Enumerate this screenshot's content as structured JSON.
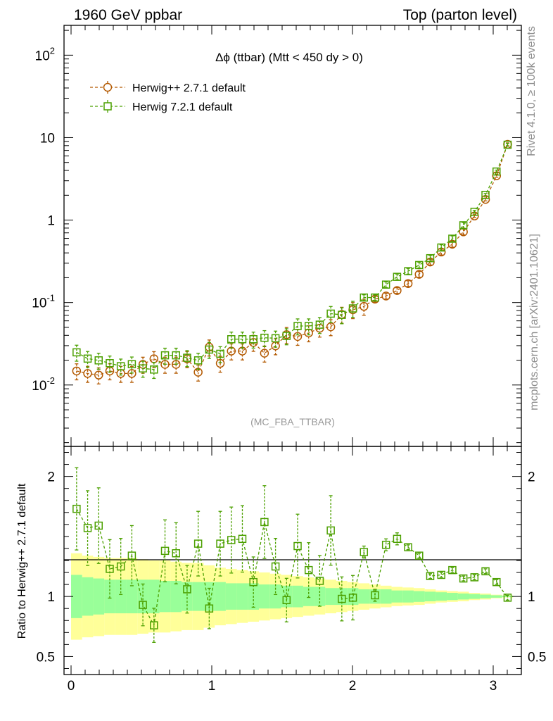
{
  "header": {
    "left": "1960 GeV ppbar",
    "right": "Top (parton level)"
  },
  "side": {
    "rivet": "Rivet 4.1.0, ≥ 100k events",
    "mcplots": "mcplots.cern.ch [arXiv:2401.10621]"
  },
  "colors": {
    "series1": "#b35900",
    "series2": "#4ca000",
    "band_inner": "#99ff99",
    "band_outer": "#ffff99"
  },
  "chart_data": [
    {
      "type": "line",
      "id": "main",
      "title": "Δϕ (ttbar) (Mtt < 450 dy > 0)",
      "annotation": "(MC_FBA_TTBAR)",
      "yscale": "log",
      "xlim": [
        -0.05,
        3.2
      ],
      "ylim": [
        0.0018,
        230
      ],
      "x_ticks": [
        0,
        1,
        2,
        3
      ],
      "y_tick_labels": [
        "10^-2",
        "10^-1",
        "1",
        "10",
        "10^2"
      ],
      "legend_position": "top-left",
      "x": [
        0.0393,
        0.1178,
        0.1963,
        0.2749,
        0.3534,
        0.432,
        0.5105,
        0.589,
        0.6676,
        0.7461,
        0.8247,
        0.9032,
        0.9817,
        1.0603,
        1.1388,
        1.2174,
        1.2959,
        1.3744,
        1.453,
        1.5315,
        1.6101,
        1.6886,
        1.7671,
        1.8457,
        1.9242,
        2.0028,
        2.0813,
        2.1598,
        2.2384,
        2.3169,
        2.3955,
        2.474,
        2.5525,
        2.6311,
        2.7096,
        2.7882,
        2.8667,
        2.9452,
        3.0238,
        3.1023
      ],
      "series": [
        {
          "name": "Herwig++ 2.7.1 default",
          "marker": "circle",
          "values": [
            0.0148,
            0.0138,
            0.0132,
            0.0148,
            0.0138,
            0.0138,
            0.0178,
            0.0208,
            0.0178,
            0.0178,
            0.0208,
            0.0143,
            0.0288,
            0.0183,
            0.0258,
            0.0258,
            0.0328,
            0.0243,
            0.0298,
            0.0408,
            0.0388,
            0.0428,
            0.0488,
            0.0508,
            0.0718,
            0.0818,
            0.0898,
            0.11,
            0.12,
            0.14,
            0.17,
            0.22,
            0.31,
            0.41,
            0.51,
            0.72,
            1.12,
            1.78,
            3.45,
            8.3
          ]
        },
        {
          "name": "Herwig 7.2.1 default",
          "marker": "square",
          "values": [
            0.0249,
            0.0209,
            0.0199,
            0.0184,
            0.0169,
            0.0179,
            0.0159,
            0.0154,
            0.0229,
            0.0229,
            0.0214,
            0.0199,
            0.0269,
            0.0239,
            0.0359,
            0.0359,
            0.0359,
            0.0374,
            0.0369,
            0.0394,
            0.0519,
            0.0519,
            0.0539,
            0.0734,
            0.0709,
            0.0849,
            0.115,
            0.115,
            0.165,
            0.205,
            0.24,
            0.285,
            0.345,
            0.465,
            0.595,
            0.865,
            1.26,
            2.02,
            3.88,
            8.2
          ]
        }
      ]
    },
    {
      "type": "line",
      "id": "ratio",
      "ylabel": "Ratio to Herwig++ 2.7.1 default",
      "xlim": [
        -0.05,
        3.2
      ],
      "ylim": [
        0.35,
        2.25
      ],
      "y_ticks": [
        0.5,
        1,
        2
      ],
      "x_ticks": [
        0,
        1,
        2,
        3
      ],
      "x": [
        0.0393,
        0.1178,
        0.1963,
        0.2749,
        0.3534,
        0.432,
        0.5105,
        0.589,
        0.6676,
        0.7461,
        0.8247,
        0.9032,
        0.9817,
        1.0603,
        1.1388,
        1.2174,
        1.2959,
        1.3744,
        1.453,
        1.5315,
        1.6101,
        1.6886,
        1.7671,
        1.8457,
        1.9242,
        2.0028,
        2.0813,
        2.1598,
        2.2384,
        2.3169,
        2.3955,
        2.474,
        2.5525,
        2.6311,
        2.7096,
        2.7882,
        2.8667,
        2.9452,
        3.0238,
        3.1023
      ],
      "values": [
        1.73,
        1.57,
        1.59,
        1.23,
        1.25,
        1.34,
        0.93,
        0.76,
        1.38,
        1.36,
        1.06,
        1.44,
        0.9,
        1.44,
        1.47,
        1.48,
        1.12,
        1.62,
        1.25,
        0.97,
        1.42,
        1.22,
        1.13,
        1.55,
        0.98,
        0.99,
        1.37,
        1.01,
        1.43,
        1.48,
        1.41,
        1.34,
        1.17,
        1.18,
        1.22,
        1.15,
        1.16,
        1.21,
        1.12,
        0.99
      ],
      "band_inner": [
        0.18,
        0.16,
        0.15,
        0.14,
        0.14,
        0.14,
        0.14,
        0.14,
        0.13,
        0.13,
        0.12,
        0.12,
        0.12,
        0.12,
        0.11,
        0.11,
        0.11,
        0.1,
        0.1,
        0.09,
        0.09,
        0.08,
        0.08,
        0.07,
        0.07,
        0.07,
        0.06,
        0.06,
        0.06,
        0.05,
        0.05,
        0.045,
        0.04,
        0.035,
        0.03,
        0.025,
        0.02,
        0.015,
        0.01,
        0.005
      ],
      "band_outer": [
        0.36,
        0.34,
        0.33,
        0.32,
        0.32,
        0.32,
        0.31,
        0.3,
        0.3,
        0.29,
        0.28,
        0.28,
        0.26,
        0.24,
        0.23,
        0.22,
        0.21,
        0.2,
        0.19,
        0.18,
        0.17,
        0.16,
        0.15,
        0.14,
        0.13,
        0.12,
        0.11,
        0.1,
        0.09,
        0.08,
        0.075,
        0.07,
        0.06,
        0.05,
        0.045,
        0.04,
        0.03,
        0.025,
        0.015,
        0.008
      ]
    }
  ]
}
